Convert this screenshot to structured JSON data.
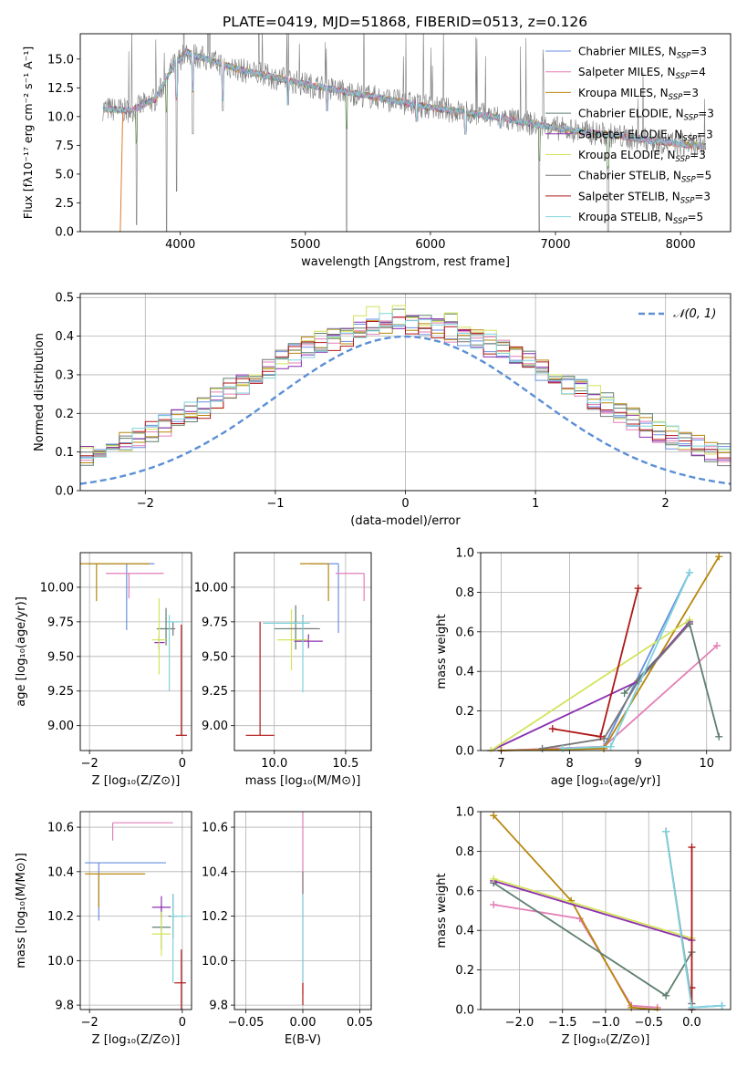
{
  "figure": {
    "title": "PLATE=0419, MJD=51868, FIBERID=0513, z=0.126"
  },
  "colors": {
    "Chabrier MILES": "#6a8fe0",
    "Salpeter MILES": "#e37fb7",
    "Kroupa MILES": "#b8860b",
    "Chabrier ELODIE": "#5f7f6f",
    "Salpeter ELODIE": "#8b2fb0",
    "Kroupa ELODIE": "#d4e35a",
    "Chabrier STELIB": "#777777",
    "Salpeter STELIB": "#b01818",
    "Kroupa STELIB": "#7fd3dc",
    "orange": "#e07b2a",
    "gaussian": "#5b8fd6"
  },
  "chart_data": [
    {
      "id": "spectrum",
      "type": "line",
      "xlabel": "wavelength [Angstrom, rest frame]",
      "ylabel": "Flux [fλ10⁻¹⁷ erg cm⁻² s⁻¹ A⁻¹]",
      "xlim": [
        3200,
        8400
      ],
      "ylim": [
        0,
        17.2
      ],
      "xticks": [
        "4000",
        "5000",
        "6000",
        "7000",
        "8000"
      ],
      "yticks": [
        "0.0",
        "2.5",
        "5.0",
        "7.5",
        "10.0",
        "12.5",
        "15.0"
      ],
      "legend": [
        {
          "base": "Chabrier MILES, N",
          "sub": "SSP",
          "tail": "=3"
        },
        {
          "base": "Salpeter MILES, N",
          "sub": "SSP",
          "tail": "=4"
        },
        {
          "base": "Kroupa MILES, N",
          "sub": "SSP",
          "tail": "=3"
        },
        {
          "base": "Chabrier ELODIE, N",
          "sub": "SSP",
          "tail": "=3"
        },
        {
          "base": "Salpeter ELODIE, N",
          "sub": "SSP",
          "tail": "=3"
        },
        {
          "base": "Kroupa ELODIE, N",
          "sub": "SSP",
          "tail": "=3"
        },
        {
          "base": "Chabrier STELIB, N",
          "sub": "SSP",
          "tail": "=5"
        },
        {
          "base": "Salpeter STELIB, N",
          "sub": "SSP",
          "tail": "=3"
        },
        {
          "base": "Kroupa STELIB, N",
          "sub": "SSP",
          "tail": "=5"
        }
      ],
      "legend_position": "upper right",
      "continuum": [
        [
          3380,
          10.7
        ],
        [
          3600,
          10.5
        ],
        [
          3800,
          11.5
        ],
        [
          3950,
          14.5
        ],
        [
          4050,
          15.6
        ],
        [
          4200,
          15.0
        ],
        [
          4500,
          14.0
        ],
        [
          5000,
          12.8
        ],
        [
          5500,
          11.8
        ],
        [
          6000,
          10.8
        ],
        [
          6500,
          10.0
        ],
        [
          7000,
          9.0
        ],
        [
          7500,
          8.3
        ],
        [
          8000,
          7.6
        ],
        [
          8200,
          7.4
        ]
      ],
      "absorption_dips": [
        [
          3650,
          0.6
        ],
        [
          3890,
          0.0
        ],
        [
          3970,
          3.5
        ],
        [
          4100,
          8.5
        ],
        [
          4340,
          10.5
        ],
        [
          4860,
          11.0
        ],
        [
          5175,
          10.5
        ],
        [
          5330,
          0.0
        ],
        [
          5890,
          9.6
        ],
        [
          6280,
          8.5
        ],
        [
          6560,
          9.0
        ],
        [
          6870,
          0.0
        ],
        [
          7420,
          0.0
        ]
      ]
    },
    {
      "id": "residuals",
      "type": "line",
      "xlabel": "(data-model)/error",
      "ylabel": "Normed distribution",
      "xlim": [
        -2.5,
        2.5
      ],
      "ylim": [
        0,
        0.51
      ],
      "xticks": [
        "−2",
        "−1",
        "0",
        "1",
        "2"
      ],
      "yticks": [
        "0.0",
        "0.1",
        "0.2",
        "0.3",
        "0.4",
        "0.5"
      ],
      "legend": "𝒩(0, 1)",
      "legend_position": "upper right",
      "bin_width": 0.1,
      "series": [
        {
          "name": "Chabrier MILES",
          "amp": 0.395,
          "phase": 1
        },
        {
          "name": "Salpeter MILES",
          "amp": 0.39,
          "phase": 2
        },
        {
          "name": "Kroupa MILES",
          "amp": 0.4,
          "phase": 3
        },
        {
          "name": "Chabrier ELODIE",
          "amp": 0.41,
          "phase": 4
        },
        {
          "name": "Salpeter ELODIE",
          "amp": 0.39,
          "phase": 5
        },
        {
          "name": "Kroupa ELODIE",
          "amp": 0.42,
          "phase": 6
        },
        {
          "name": "Chabrier STELIB",
          "amp": 0.4,
          "phase": 7
        },
        {
          "name": "Salpeter STELIB",
          "amp": 0.39,
          "phase": 8
        },
        {
          "name": "Kroupa STELIB",
          "amp": 0.4,
          "phase": 9
        }
      ]
    },
    {
      "id": "age_vs_Z",
      "type": "scatter",
      "xlabel": "Z [log₁₀(Z/Z⊙)]",
      "ylabel": "age  [log₁₀(age/yr)]",
      "xlim": [
        -2.2,
        0.2
      ],
      "ylim": [
        8.82,
        10.25
      ],
      "xticks": [
        "−2",
        "0"
      ],
      "yticks": [
        "9.00",
        "9.25",
        "9.50",
        "9.75",
        "10.00"
      ],
      "points": [
        {
          "c": "Chabrier MILES",
          "x": -1.2,
          "y": 10.17,
          "xerr": [
            0.85,
            0.6
          ],
          "yerr": [
            0.48,
            0.0
          ]
        },
        {
          "c": "Salpeter MILES",
          "x": -1.15,
          "y": 10.1,
          "xerr": [
            0.5,
            0.75
          ],
          "yerr": [
            0.18,
            0.0
          ]
        },
        {
          "c": "Kroupa MILES",
          "x": -1.85,
          "y": 10.17,
          "xerr": [
            0.35,
            1.15
          ],
          "yerr": [
            0.27,
            0.0
          ]
        },
        {
          "c": "Chabrier ELODIE",
          "x": -0.35,
          "y": 9.7,
          "xerr": [
            0.2,
            0.1
          ],
          "yerr": [
            0.12,
            0.15
          ]
        },
        {
          "c": "Salpeter ELODIE",
          "x": -0.5,
          "y": 9.6,
          "xerr": [
            0.1,
            0.12
          ],
          "yerr": [
            0.05,
            0.05
          ]
        },
        {
          "c": "Kroupa ELODIE",
          "x": -0.5,
          "y": 9.62,
          "xerr": [
            0.15,
            0.15
          ],
          "yerr": [
            0.25,
            0.3
          ]
        },
        {
          "c": "Chabrier STELIB",
          "x": -0.2,
          "y": 9.7,
          "xerr": [
            0.1,
            0.05
          ],
          "yerr": [
            0.05,
            0.05
          ]
        },
        {
          "c": "Salpeter STELIB",
          "x": -0.02,
          "y": 8.93,
          "xerr": [
            0.12,
            0.12
          ],
          "yerr": [
            0.0,
            0.8
          ]
        },
        {
          "c": "Kroupa STELIB",
          "x": -0.28,
          "y": 9.75,
          "xerr": [
            0.05,
            0.25
          ],
          "yerr": [
            0.5,
            0.05
          ]
        }
      ]
    },
    {
      "id": "age_vs_mass",
      "type": "scatter",
      "xlabel": "mass [log₁₀(M/M⊙)]",
      "ylabel": "",
      "xlim": [
        9.72,
        10.68
      ],
      "ylim": [
        8.82,
        10.25
      ],
      "xticks": [
        "10.0",
        "10.5"
      ],
      "yticks": [
        "9.00",
        "9.25",
        "9.50",
        "9.75",
        "10.00"
      ],
      "points": [
        {
          "c": "Chabrier MILES",
          "x": 10.45,
          "y": 10.17,
          "xerr": [
            0.2,
            0.0
          ],
          "yerr": [
            0.5,
            0.0
          ]
        },
        {
          "c": "Salpeter MILES",
          "x": 10.63,
          "y": 10.1,
          "xerr": [
            0.2,
            0.0
          ],
          "yerr": [
            0.2,
            0.0
          ]
        },
        {
          "c": "Kroupa MILES",
          "x": 10.38,
          "y": 10.17,
          "xerr": [
            0.2,
            0.0
          ],
          "yerr": [
            0.27,
            0.0
          ]
        },
        {
          "c": "Chabrier ELODIE",
          "x": 10.15,
          "y": 9.7,
          "xerr": [
            0.15,
            0.15
          ],
          "yerr": [
            0.15,
            0.17
          ]
        },
        {
          "c": "Salpeter ELODIE",
          "x": 10.24,
          "y": 9.61,
          "xerr": [
            0.1,
            0.1
          ],
          "yerr": [
            0.05,
            0.05
          ]
        },
        {
          "c": "Kroupa ELODIE",
          "x": 10.12,
          "y": 9.62,
          "xerr": [
            0.1,
            0.12
          ],
          "yerr": [
            0.22,
            0.22
          ]
        },
        {
          "c": "Chabrier STELIB",
          "x": 10.2,
          "y": 9.7,
          "xerr": [
            0.1,
            0.12
          ],
          "yerr": [
            0.1,
            0.1
          ]
        },
        {
          "c": "Salpeter STELIB",
          "x": 9.9,
          "y": 8.93,
          "xerr": [
            0.1,
            0.1
          ],
          "yerr": [
            0.0,
            0.82
          ]
        },
        {
          "c": "Kroupa STELIB",
          "x": 10.2,
          "y": 9.74,
          "xerr": [
            0.28,
            0.05
          ],
          "yerr": [
            0.5,
            0.05
          ]
        }
      ]
    },
    {
      "id": "weight_vs_age",
      "type": "line",
      "xlabel": "age  [log₁₀(age/yr)]",
      "ylabel": "mass weight",
      "xlim": [
        6.7,
        10.35
      ],
      "ylim": [
        0,
        1.0
      ],
      "xticks": [
        "7",
        "8",
        "9",
        "10"
      ],
      "yticks": [
        "0.0",
        "0.2",
        "0.4",
        "0.6",
        "0.8",
        "1.0"
      ],
      "series": [
        {
          "name": "Chabrier MILES",
          "x": [
            7.0,
            8.5,
            9.75
          ],
          "y": [
            0.0,
            0.02,
            0.9
          ]
        },
        {
          "name": "Salpeter MILES",
          "x": [
            7.0,
            8.5,
            10.15
          ],
          "y": [
            0.0,
            0.02,
            0.53
          ]
        },
        {
          "name": "Kroupa MILES",
          "x": [
            7.0,
            8.5,
            10.18
          ],
          "y": [
            0.0,
            0.01,
            0.98
          ]
        },
        {
          "name": "Chabrier ELODIE",
          "x": [
            8.8,
            9.75,
            10.18
          ],
          "y": [
            0.29,
            0.64,
            0.07
          ]
        },
        {
          "name": "Salpeter ELODIE",
          "x": [
            6.85,
            9.0,
            9.75
          ],
          "y": [
            0.0,
            0.35,
            0.65
          ]
        },
        {
          "name": "Kroupa ELODIE",
          "x": [
            6.85,
            9.75
          ],
          "y": [
            0.0,
            0.66
          ]
        },
        {
          "name": "Chabrier STELIB",
          "x": [
            7.6,
            8.5,
            9.0,
            9.75
          ],
          "y": [
            0.01,
            0.06,
            0.35,
            0.64
          ]
        },
        {
          "name": "Salpeter STELIB",
          "x": [
            7.75,
            8.45,
            9.0
          ],
          "y": [
            0.11,
            0.07,
            0.82
          ]
        },
        {
          "name": "Kroupa STELIB",
          "x": [
            7.9,
            8.6,
            9.75
          ],
          "y": [
            0.01,
            0.02,
            0.9
          ]
        }
      ]
    },
    {
      "id": "mass_vs_Z",
      "type": "scatter",
      "xlabel": "Z [log₁₀(Z/Z⊙)]",
      "ylabel": "mass [log₁₀(M/M⊙)]",
      "xlim": [
        -2.2,
        0.2
      ],
      "ylim": [
        9.78,
        10.67
      ],
      "xticks": [
        "−2",
        "0"
      ],
      "yticks": [
        "9.8",
        "10.0",
        "10.2",
        "10.4",
        "10.6"
      ],
      "points": [
        {
          "c": "Chabrier MILES",
          "x": -1.8,
          "y": 10.44,
          "xerr": [
            0.3,
            1.45
          ],
          "yerr": [
            0.26,
            0.0
          ]
        },
        {
          "c": "Salpeter MILES",
          "x": -1.5,
          "y": 10.62,
          "xerr": [
            0.0,
            1.3
          ],
          "yerr": [
            0.08,
            0.0
          ]
        },
        {
          "c": "Kroupa MILES",
          "x": -1.8,
          "y": 10.39,
          "xerr": [
            0.3,
            1.0
          ],
          "yerr": [
            0.15,
            0.0
          ]
        },
        {
          "c": "Chabrier ELODIE",
          "x": -0.45,
          "y": 10.15,
          "xerr": [
            0.2,
            0.2
          ],
          "yerr": [
            0.1,
            0.1
          ]
        },
        {
          "c": "Salpeter ELODIE",
          "x": -0.45,
          "y": 10.24,
          "xerr": [
            0.2,
            0.2
          ],
          "yerr": [
            0.05,
            0.05
          ]
        },
        {
          "c": "Kroupa ELODIE",
          "x": -0.45,
          "y": 10.12,
          "xerr": [
            0.2,
            0.2
          ],
          "yerr": [
            0.1,
            0.1
          ]
        },
        {
          "c": "Chabrier STELIB",
          "x": -0.2,
          "y": 10.2,
          "xerr": [
            0.1,
            0.1
          ],
          "yerr": [
            0.1,
            0.1
          ]
        },
        {
          "c": "Salpeter STELIB",
          "x": -0.02,
          "y": 9.9,
          "xerr": [
            0.15,
            0.1
          ],
          "yerr": [
            0.15,
            0.15
          ]
        },
        {
          "c": "Kroupa STELIB",
          "x": -0.2,
          "y": 10.2,
          "xerr": [
            0.05,
            0.3
          ],
          "yerr": [
            0.3,
            0.1
          ]
        }
      ]
    },
    {
      "id": "mass_vs_ebv",
      "type": "scatter",
      "xlabel": "E(B-V)",
      "ylabel": "",
      "xlim": [
        -0.06,
        0.06
      ],
      "ylim": [
        9.78,
        10.67
      ],
      "xticks": [
        "−0.05",
        "0.00",
        "0.05"
      ],
      "yticks": [
        "9.8",
        "10.0",
        "10.2",
        "10.4",
        "10.6"
      ],
      "points": [
        {
          "c": "Salpeter MILES",
          "x": 0.0,
          "y": 10.3,
          "xerr": [
            0,
            0
          ],
          "yerr": [
            0.45,
            0.38
          ]
        },
        {
          "c": "Chabrier STELIB",
          "x": 0.0,
          "y": 10.35,
          "xerr": [
            0,
            0
          ],
          "yerr": [
            0.05,
            0.05
          ]
        },
        {
          "c": "Kroupa STELIB",
          "x": 0.0,
          "y": 10.1,
          "xerr": [
            0,
            0
          ],
          "yerr": [
            0.2,
            0.2
          ]
        },
        {
          "c": "Salpeter STELIB",
          "x": 0.0,
          "y": 9.85,
          "xerr": [
            0,
            0
          ],
          "yerr": [
            0.05,
            0.05
          ]
        }
      ]
    },
    {
      "id": "weight_vs_Z",
      "type": "line",
      "xlabel": "Z [log₁₀(Z/Z⊙)]",
      "ylabel": "mass weight",
      "xlim": [
        -2.45,
        0.45
      ],
      "ylim": [
        0,
        1.0
      ],
      "xticks": [
        "−2.0",
        "−1.5",
        "−1.0",
        "−0.5",
        "0.0"
      ],
      "yticks": [
        "0.0",
        "0.2",
        "0.4",
        "0.6",
        "0.8",
        "1.0"
      ],
      "series": [
        {
          "name": "Chabrier MILES",
          "x": [
            -0.3,
            -0.0,
            0.35
          ],
          "y": [
            0.9,
            0.01,
            0.02
          ]
        },
        {
          "name": "Salpeter MILES",
          "x": [
            -2.3,
            -1.3,
            -0.7,
            -0.4
          ],
          "y": [
            0.53,
            0.46,
            0.02,
            0.01
          ]
        },
        {
          "name": "Kroupa MILES",
          "x": [
            -2.3,
            -1.4,
            -0.7,
            -0.4
          ],
          "y": [
            0.98,
            0.55,
            0.01,
            0.0
          ]
        },
        {
          "name": "Chabrier ELODIE",
          "x": [
            -2.3,
            -0.3,
            0.0
          ],
          "y": [
            0.64,
            0.07,
            0.29
          ]
        },
        {
          "name": "Salpeter ELODIE",
          "x": [
            -2.3,
            0.0
          ],
          "y": [
            0.65,
            0.35
          ]
        },
        {
          "name": "Kroupa ELODIE",
          "x": [
            -2.3,
            0.0
          ],
          "y": [
            0.66,
            0.36
          ]
        },
        {
          "name": "Chabrier STELIB",
          "x": [
            -0.3,
            0.0
          ],
          "y": [
            0.9,
            0.03
          ]
        },
        {
          "name": "Salpeter STELIB",
          "x": [
            0.0,
            0.0,
            0.0
          ],
          "y": [
            0.82,
            0.11,
            0.0
          ]
        },
        {
          "name": "Kroupa STELIB",
          "x": [
            -0.3,
            0.0,
            0.35
          ],
          "y": [
            0.9,
            0.01,
            0.02
          ]
        }
      ]
    }
  ]
}
